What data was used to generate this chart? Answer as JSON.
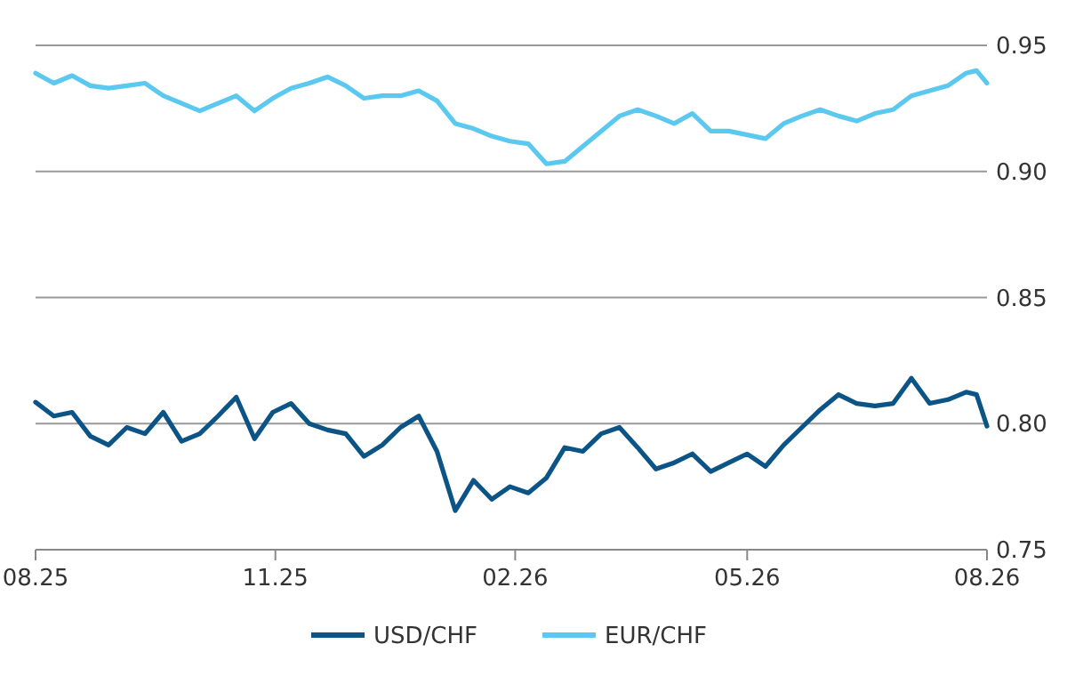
{
  "chart_data": {
    "type": "line",
    "x": [
      "2025-08-01",
      "2025-08-08",
      "2025-08-15",
      "2025-08-22",
      "2025-08-29",
      "2025-09-05",
      "2025-09-12",
      "2025-09-19",
      "2025-09-26",
      "2025-10-03",
      "2025-10-10",
      "2025-10-17",
      "2025-10-24",
      "2025-10-31",
      "2025-11-07",
      "2025-11-14",
      "2025-11-21",
      "2025-11-28",
      "2025-12-05",
      "2025-12-12",
      "2025-12-19",
      "2025-12-26",
      "2026-01-02",
      "2026-01-09",
      "2026-01-16",
      "2026-01-23",
      "2026-01-30",
      "2026-02-06",
      "2026-02-13",
      "2026-02-20",
      "2026-02-27",
      "2026-03-06",
      "2026-03-13",
      "2026-03-20",
      "2026-03-27",
      "2026-04-03",
      "2026-04-10",
      "2026-04-17",
      "2026-04-24",
      "2026-05-01",
      "2026-05-08",
      "2026-05-15",
      "2026-05-22",
      "2026-05-29",
      "2026-06-05",
      "2026-06-12",
      "2026-06-19",
      "2026-06-26",
      "2026-07-03",
      "2026-07-10",
      "2026-07-17",
      "2026-07-24",
      "2026-07-28",
      "2026-08-01"
    ],
    "series": [
      {
        "name": "USD/CHF",
        "color": "#0b5485",
        "values": [
          0.8085,
          0.803,
          0.8045,
          0.795,
          0.7915,
          0.7985,
          0.796,
          0.8045,
          0.793,
          0.796,
          0.803,
          0.8105,
          0.794,
          0.8045,
          0.808,
          0.8,
          0.7975,
          0.796,
          0.787,
          0.7915,
          0.7985,
          0.803,
          0.789,
          0.7655,
          0.7775,
          0.77,
          0.775,
          0.7725,
          0.7785,
          0.7905,
          0.789,
          0.796,
          0.7985,
          0.7905,
          0.782,
          0.7845,
          0.788,
          0.781,
          0.7845,
          0.788,
          0.783,
          0.7915,
          0.7985,
          0.8055,
          0.8115,
          0.808,
          0.807,
          0.808,
          0.818,
          0.808,
          0.8095,
          0.8125,
          0.8115,
          0.799
        ]
      },
      {
        "name": "EUR/CHF",
        "color": "#5bc8f0",
        "values": [
          0.939,
          0.935,
          0.938,
          0.934,
          0.933,
          0.934,
          0.935,
          0.93,
          0.927,
          0.924,
          0.927,
          0.93,
          0.924,
          0.929,
          0.933,
          0.935,
          0.9375,
          0.934,
          0.929,
          0.93,
          0.93,
          0.932,
          0.928,
          0.919,
          0.917,
          0.914,
          0.912,
          0.911,
          0.903,
          0.904,
          0.91,
          0.916,
          0.922,
          0.9245,
          0.922,
          0.919,
          0.923,
          0.916,
          0.916,
          0.9145,
          0.913,
          0.919,
          0.922,
          0.9245,
          0.922,
          0.92,
          0.923,
          0.9245,
          0.93,
          0.932,
          0.934,
          0.939,
          0.94,
          0.935
        ]
      }
    ],
    "xlim": [
      "2025-08-01",
      "2026-08-01"
    ],
    "xticks": [
      {
        "value": "2025-08-01",
        "label": "08.25"
      },
      {
        "value": "2025-11-01",
        "label": "11.25"
      },
      {
        "value": "2026-02-01",
        "label": "02.26"
      },
      {
        "value": "2026-05-01",
        "label": "05.26"
      },
      {
        "value": "2026-08-01",
        "label": "08.26"
      }
    ],
    "ylim": [
      0.75,
      0.95
    ],
    "yticks": [
      0.75,
      {
        "value": 0.8,
        "label": "0.80"
      },
      0.85,
      {
        "value": 0.9,
        "label": "0.90"
      },
      0.95
    ],
    "grid": "y",
    "legend": "bottom"
  }
}
